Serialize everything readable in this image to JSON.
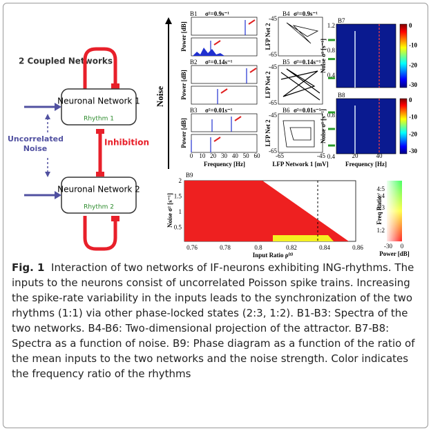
{
  "left": {
    "title": "2 Coupled Networks",
    "node1": {
      "label": "Neuronal Network 1",
      "rhythm": "Rhythm 1"
    },
    "node2": {
      "label": "Neuronal Network 2",
      "rhythm": "Rhythm 2"
    },
    "noise": "Uncorrelated Noise",
    "inhibition": "Inhibition"
  },
  "noise_axis": "Noise",
  "spectra": {
    "panels": [
      {
        "id": "B1",
        "sigma": "σ²=0.9s⁻¹"
      },
      {
        "id": "B2",
        "sigma": "σ²=0.14s⁻¹"
      },
      {
        "id": "B3",
        "sigma": "σ²=0.01s⁻¹"
      }
    ],
    "ylabel": "Power [dB]",
    "xticks": [
      "0",
      "10",
      "20",
      "30",
      "40",
      "50",
      "60"
    ],
    "xlabel": "Frequency [Hz]"
  },
  "attractor": {
    "panels": [
      {
        "id": "B4",
        "sigma": "σ²=0.9s⁻¹"
      },
      {
        "id": "B5",
        "sigma": "σ²=0.14s⁻¹"
      },
      {
        "id": "B6",
        "sigma": "σ²=0.01s⁻¹"
      }
    ],
    "ylabel": "LFP Net 2",
    "yticks": [
      "-45",
      "-65"
    ],
    "xticks": [
      "-65",
      "-45"
    ],
    "xlabel": "LFP Network 1 [mV]"
  },
  "heatmaps": {
    "panels": [
      {
        "id": "B7",
        "yticks": [
          "1.2",
          "0.8",
          "0.4"
        ]
      },
      {
        "id": "B8",
        "yticks": [
          "0.8",
          "0.4"
        ]
      }
    ],
    "ylabel": "Noise σ² [s⁻¹]",
    "xticks": [
      "20",
      "40"
    ],
    "xlabel": "Frequency [Hz]",
    "colorbar_ticks": [
      "0",
      "-10",
      "-20",
      "-30"
    ]
  },
  "phase": {
    "id": "B9",
    "ylabel": "Noise σ² [s⁻¹]",
    "yticks": [
      "2",
      "1.5",
      "1",
      "0.5"
    ],
    "xticks": [
      "0.76",
      "0.78",
      "0.8",
      "0.82",
      "0.84",
      "0.86"
    ],
    "xlabel": "Input Ratio ρ⁽ᴵ⁾",
    "regions": [
      "1:2",
      "2:3",
      "1:1"
    ],
    "colorbar": {
      "ylabel": "Freq Ratio",
      "yticks": [
        "4:5",
        "3:4",
        "2:3",
        "1:2"
      ],
      "xticks": [
        "-30",
        "0"
      ],
      "xlabel": "Power [dB]"
    }
  },
  "caption": {
    "label": "Fig. 1",
    "text": "Interaction of two networks of IF-neurons exhibiting ING-rhythms. The inputs to the neurons consist of uncorrelated Poisson spike trains. Increasing the spike-rate variability in the inputs leads to the synchronization of the two rhythms (1:1) via other phase-locked states (2:3, 1:2). B1-B3: Spectra of the two networks. B4-B6: Two-dimensional projection of the attractor. B7-B8: Spectra as a function of noise. B9: Phase diagram as a function of the ratio of the mean inputs to the two networks and the noise strength. Color indicates the frequency ratio of the rhythms"
  }
}
